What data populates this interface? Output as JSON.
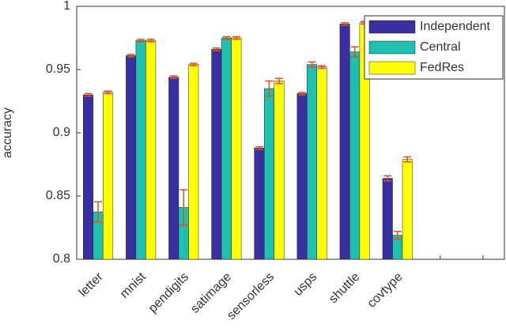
{
  "chart_data": {
    "type": "bar",
    "y_label": "accuracy",
    "categories": [
      "letter",
      "mnist",
      "pendigits",
      "satimage",
      "sensorless",
      "usps",
      "shuttle",
      "covtype",
      null,
      null
    ],
    "series": [
      {
        "name": "Independent",
        "color": "#3a2fa0",
        "values": [
          0.93,
          0.961,
          0.944,
          0.966,
          0.888,
          0.931,
          0.986,
          0.864,
          null,
          null
        ],
        "errors": [
          0.001,
          0.001,
          0.001,
          0.001,
          0.001,
          0.001,
          0.001,
          0.002,
          null,
          null
        ]
      },
      {
        "name": "Central",
        "color": "#20c0b0",
        "values": [
          0.8375,
          0.973,
          0.841,
          0.975,
          0.935,
          0.954,
          0.964,
          0.819,
          null,
          null
        ],
        "errors": [
          0.008,
          0.001,
          0.014,
          0.001,
          0.006,
          0.002,
          0.004,
          0.003,
          null,
          null
        ]
      },
      {
        "name": "FedRes",
        "color": "#ffff00",
        "values": [
          0.932,
          0.973,
          0.954,
          0.975,
          0.941,
          0.952,
          0.987,
          0.879,
          null,
          null
        ],
        "errors": [
          0.001,
          0.001,
          0.001,
          0.001,
          0.002,
          0.001,
          0.001,
          0.002,
          null,
          null
        ]
      }
    ],
    "error_color": "#e05020",
    "ylim": [
      0.8,
      1
    ],
    "yticks": [
      0.8,
      0.85,
      0.9,
      0.95,
      1
    ],
    "legend": "top-right"
  }
}
